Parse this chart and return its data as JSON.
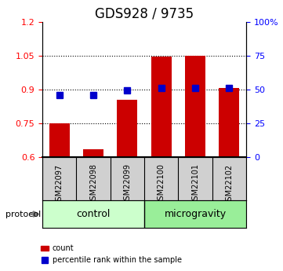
{
  "title": "GDS928 / 9735",
  "samples": [
    "GSM22097",
    "GSM22098",
    "GSM22099",
    "GSM22100",
    "GSM22101",
    "GSM22102"
  ],
  "bar_values": [
    0.75,
    0.635,
    0.855,
    1.047,
    1.05,
    0.905
  ],
  "percentile_values": [
    0.875,
    0.875,
    0.895,
    0.905,
    0.905,
    0.905
  ],
  "bar_color": "#cc0000",
  "dot_color": "#0000cc",
  "ylim_left": [
    0.6,
    1.2
  ],
  "ylim_right": [
    0,
    100
  ],
  "yticks_left": [
    0.6,
    0.75,
    0.9,
    1.05,
    1.2
  ],
  "yticks_right": [
    0,
    25,
    50,
    75,
    100
  ],
  "ytick_labels_right": [
    "0",
    "25",
    "50",
    "75",
    "100%"
  ],
  "ytick_labels_left": [
    "0.6",
    "0.75",
    "0.9",
    "1.05",
    "1.2"
  ],
  "hlines": [
    0.75,
    0.9,
    1.05
  ],
  "group_control": [
    0,
    1,
    2
  ],
  "group_microgravity": [
    3,
    4,
    5
  ],
  "group_labels": [
    "control",
    "microgravity"
  ],
  "group_colors": [
    "#ccffcc",
    "#99ee99"
  ],
  "protocol_label": "protocol",
  "bar_baseline": 0.6,
  "background_color": "#ffffff",
  "ax_background": "#ffffff",
  "title_fontsize": 12,
  "bar_width": 0.6
}
